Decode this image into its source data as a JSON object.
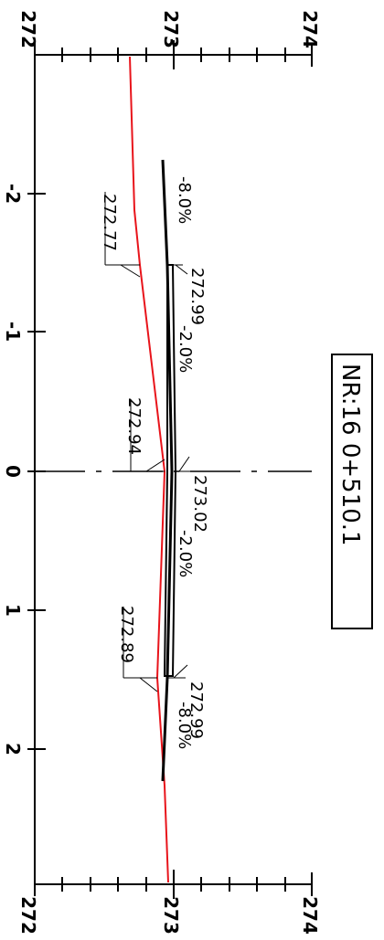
{
  "title": "NR:16 0+510.1",
  "elevation_axis": {
    "top_labels": [
      "272",
      "273",
      "274"
    ],
    "bottom_labels": [
      "272",
      "273",
      "274"
    ]
  },
  "offset_axis": {
    "labels": [
      "-2",
      "-1",
      "0",
      "1",
      "2"
    ]
  },
  "annotations": {
    "ground_left": "272.77",
    "design_left": "272.99",
    "ground_center": "272.94",
    "design_center": "273.02",
    "ground_right": "272.89",
    "design_right": "272.99",
    "slope_left_outer": "-8.0%",
    "slope_left_inner": "-2.0%",
    "slope_right_inner": "-2.0%",
    "slope_right_outer": "-8.0%"
  },
  "colors": {
    "ground_line": "#e8141b",
    "design_line": "#000000"
  }
}
